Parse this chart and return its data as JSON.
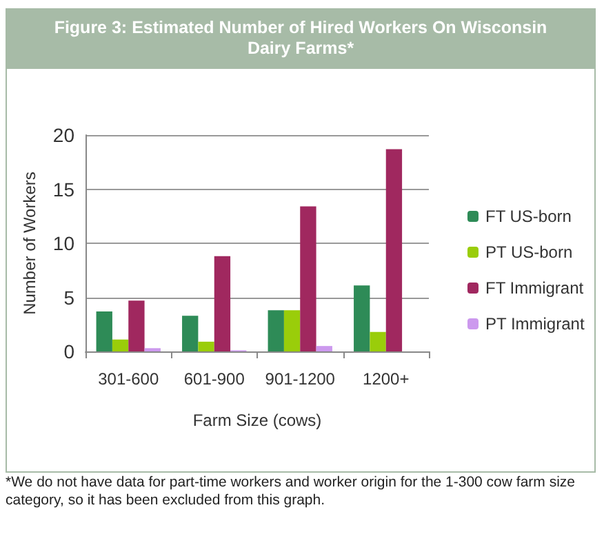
{
  "chart_data": {
    "type": "bar",
    "title": "Figure 3: Estimated Number of Hired Workers On Wisconsin Dairy Farms*",
    "xlabel": "Farm Size (cows)",
    "ylabel": "Number of Workers",
    "categories": [
      "301-600",
      "601-900",
      "901-1200",
      "1200+"
    ],
    "series": [
      {
        "name": "FT US-born",
        "color": "#2e8b57",
        "values": [
          3.7,
          3.3,
          3.8,
          6.1
        ]
      },
      {
        "name": "PT US-born",
        "color": "#9acd0a",
        "values": [
          1.1,
          0.9,
          3.8,
          1.8
        ]
      },
      {
        "name": "FT Immigrant",
        "color": "#a0285f",
        "values": [
          4.7,
          8.8,
          13.4,
          18.7
        ]
      },
      {
        "name": "PT Immigrant",
        "color": "#cc99ee",
        "values": [
          0.3,
          0.1,
          0.5,
          0
        ]
      }
    ],
    "ylim": [
      0,
      20
    ],
    "yticks": [
      0,
      5,
      10,
      15,
      20
    ],
    "grid": "y",
    "legend": "right",
    "annotations": [
      "*We do not have data for part-time workers and worker origin for the 1-300 cow farm size category, so it has been excluded from this graph."
    ]
  }
}
